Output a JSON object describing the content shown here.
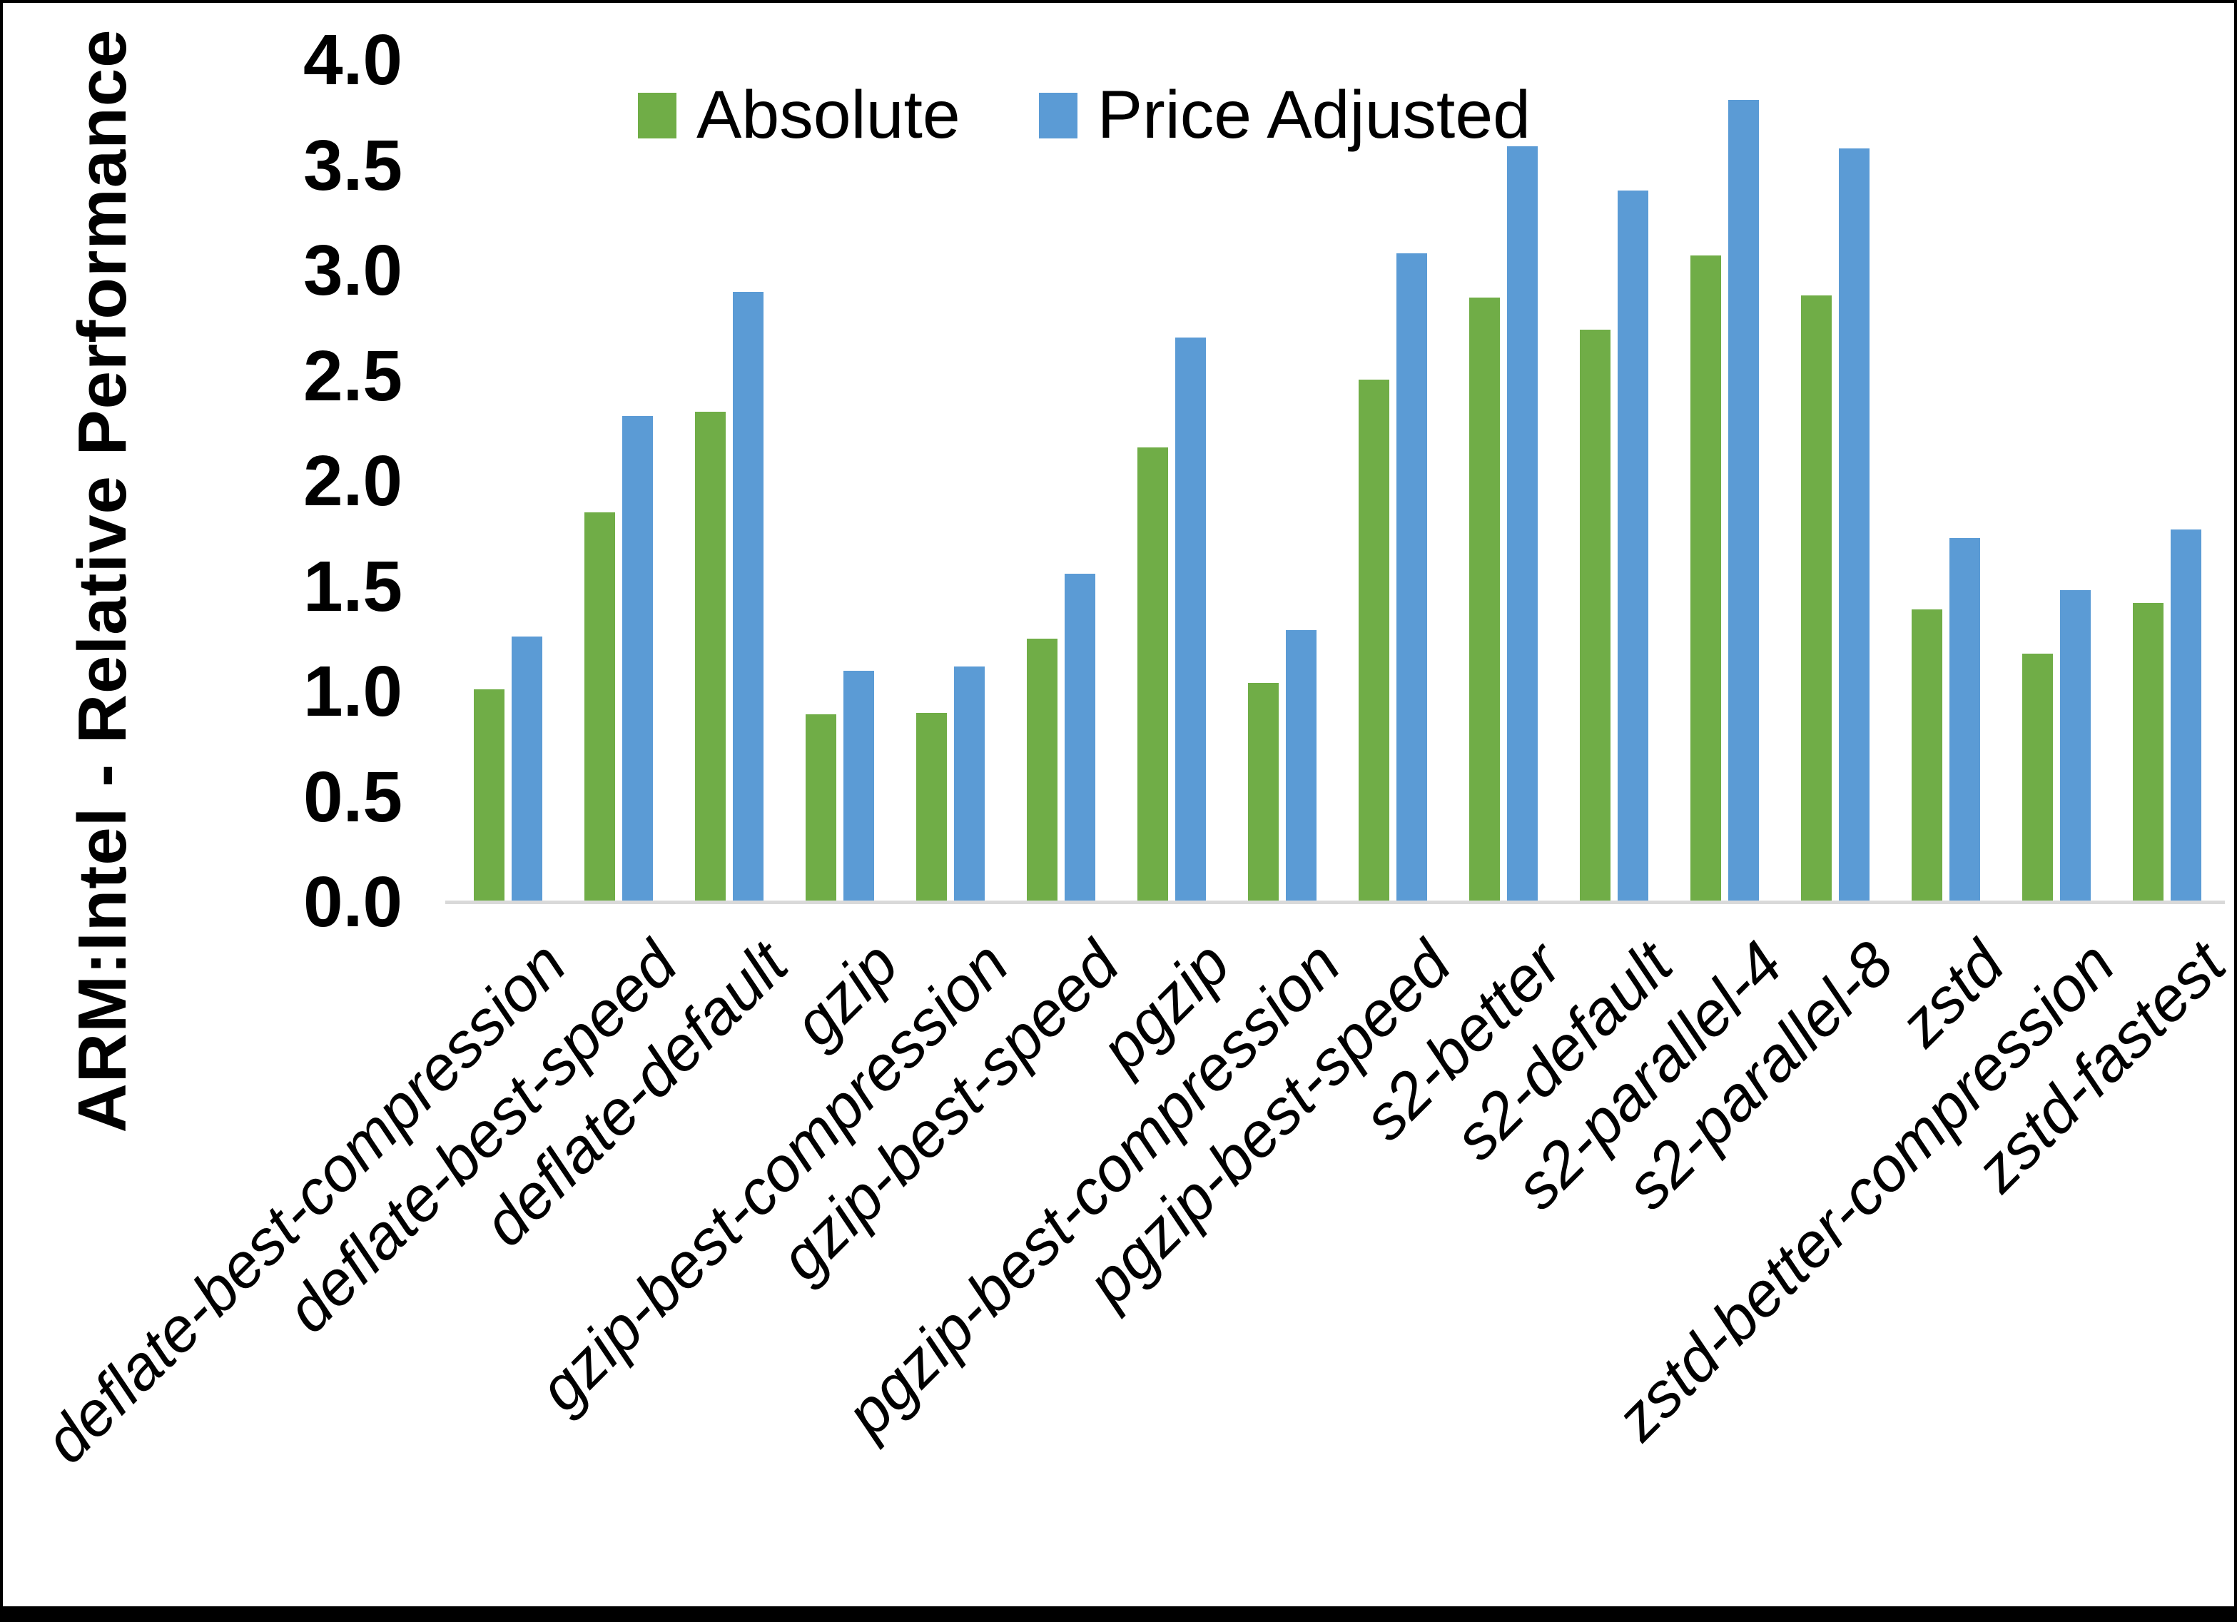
{
  "figure": {
    "y_axis_title": "ARM:Intel - Relative Performance",
    "y_ticks": [
      "4.0",
      "3.5",
      "3.0",
      "2.5",
      "2.0",
      "1.5",
      "1.0",
      "0.5",
      "0.0"
    ],
    "legend": [
      {
        "label": "Absolute",
        "color": "#70AD47"
      },
      {
        "label": "Price Adjusted",
        "color": "#5B9BD5"
      }
    ],
    "baseline_color": "#d9d9d9"
  },
  "chart_data": {
    "type": "bar",
    "title": "",
    "xlabel": "",
    "ylabel": "ARM:Intel - Relative Performance",
    "ylim": [
      0.0,
      4.0
    ],
    "y_tick_step": 0.5,
    "grid": false,
    "legend_position": "top-center",
    "categories": [
      "deflate-best-compression",
      "deflate-best-speed",
      "deflate-default",
      "gzip",
      "gzip-best-compression",
      "gzip-best-speed",
      "pgzip",
      "pgzip-best-compression",
      "pgzip-best-speed",
      "s2-better",
      "s2-default",
      "s2-parallel-4",
      "s2-parallel-8",
      "zstd",
      "zstd-better-compression",
      "zstd-fastest"
    ],
    "series": [
      {
        "name": "Absolute",
        "color": "#70AD47",
        "values": [
          1.01,
          1.85,
          2.33,
          0.89,
          0.9,
          1.25,
          2.16,
          1.04,
          2.48,
          2.87,
          2.72,
          3.07,
          2.88,
          1.39,
          1.18,
          1.42
        ]
      },
      {
        "name": "Price Adjusted",
        "color": "#5B9BD5",
        "values": [
          1.26,
          2.31,
          2.9,
          1.1,
          1.12,
          1.56,
          2.68,
          1.29,
          3.08,
          3.59,
          3.38,
          3.81,
          3.58,
          1.73,
          1.48,
          1.77
        ]
      }
    ]
  }
}
